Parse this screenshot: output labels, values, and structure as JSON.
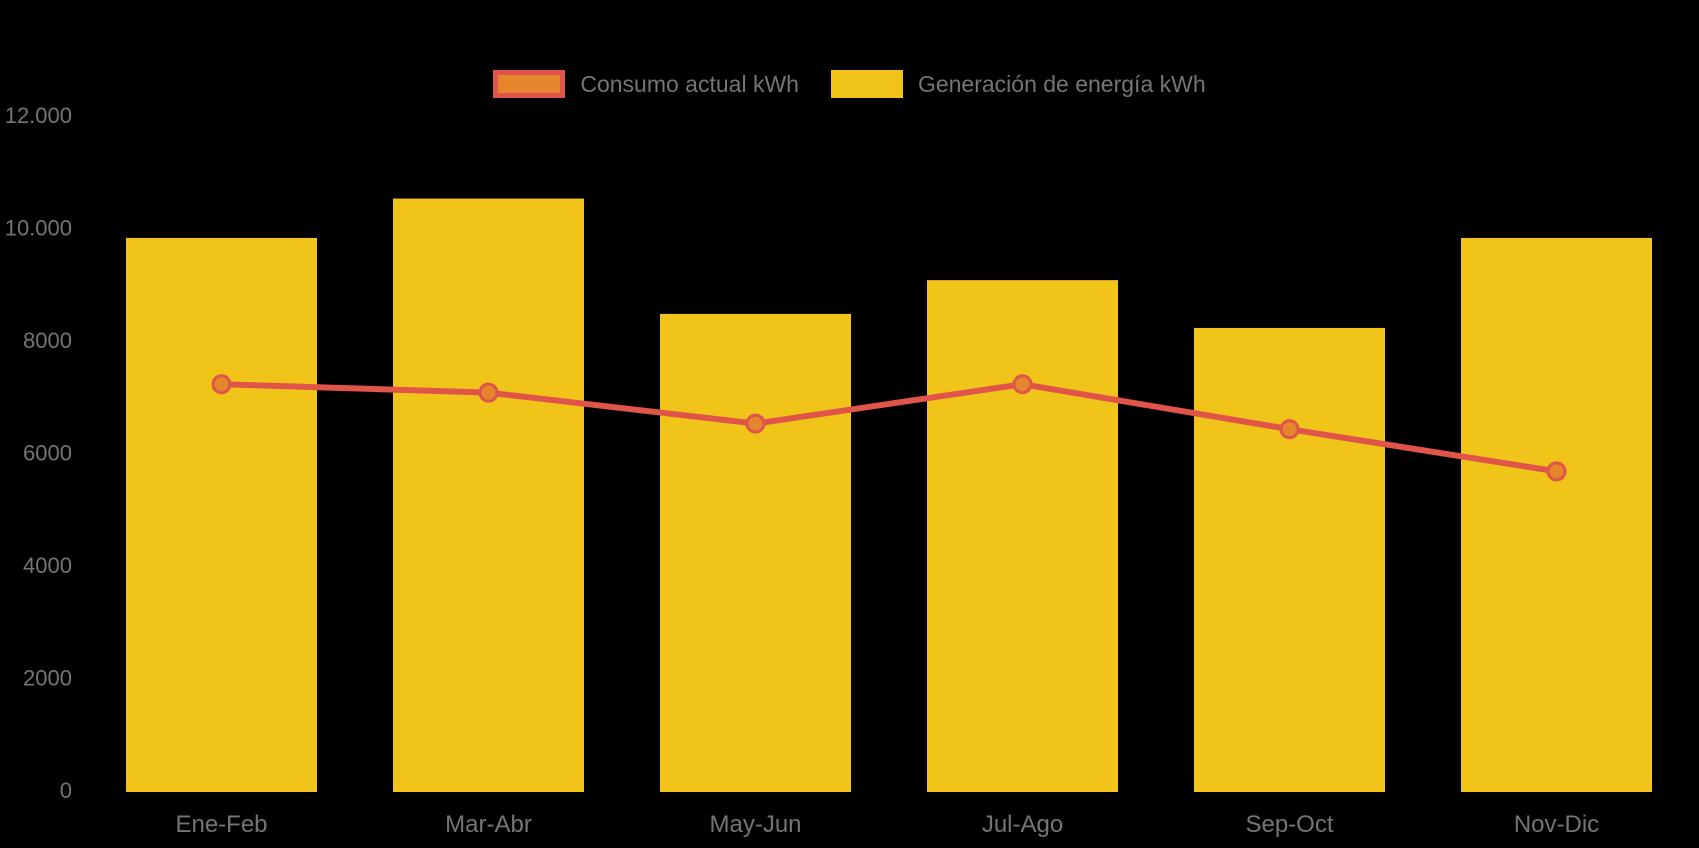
{
  "page": {
    "background": "#000000",
    "text_color": "#757575"
  },
  "legend": {
    "position": "top-center",
    "items": [
      {
        "id": "consumo",
        "label": "Consumo actual kWh",
        "swatch_fill": "#E5862D",
        "swatch_border": "#E0544A"
      },
      {
        "id": "generacion",
        "label": "Generación de energía kWh",
        "swatch_fill": "#F0C419",
        "swatch_border": "#F0C419"
      }
    ]
  },
  "chart_data": {
    "type": "bar",
    "subtype": "bar-line-combo",
    "title": "",
    "xlabel": "",
    "ylabel": "",
    "categories": [
      "Ene-Feb",
      "Mar-Abr",
      "May-Jun",
      "Jul-Ago",
      "Sep-Oct",
      "Nov-Dic"
    ],
    "series": [
      {
        "name": "Generación de energía kWh",
        "type": "bar",
        "color": "#F0C419",
        "values": [
          9850,
          10550,
          8500,
          9100,
          8250,
          9850
        ]
      },
      {
        "name": "Consumo actual kWh",
        "type": "line",
        "color": "#E0544A",
        "marker_fill": "#E5862D",
        "values": [
          7250,
          7100,
          6550,
          7250,
          6450,
          5700
        ]
      }
    ],
    "ylim": [
      0,
      12000
    ],
    "yticks": [
      {
        "value": 0,
        "label": "0"
      },
      {
        "value": 2000,
        "label": "2000"
      },
      {
        "value": 4000,
        "label": "4000"
      },
      {
        "value": 6000,
        "label": "6000"
      },
      {
        "value": 8000,
        "label": "8000"
      },
      {
        "value": 10000,
        "label": "10.000"
      },
      {
        "value": 12000,
        "label": "12.000"
      }
    ],
    "grid": false,
    "legend_position": "top",
    "axis_label_color": "#757575",
    "background": "transparent-on-black"
  }
}
